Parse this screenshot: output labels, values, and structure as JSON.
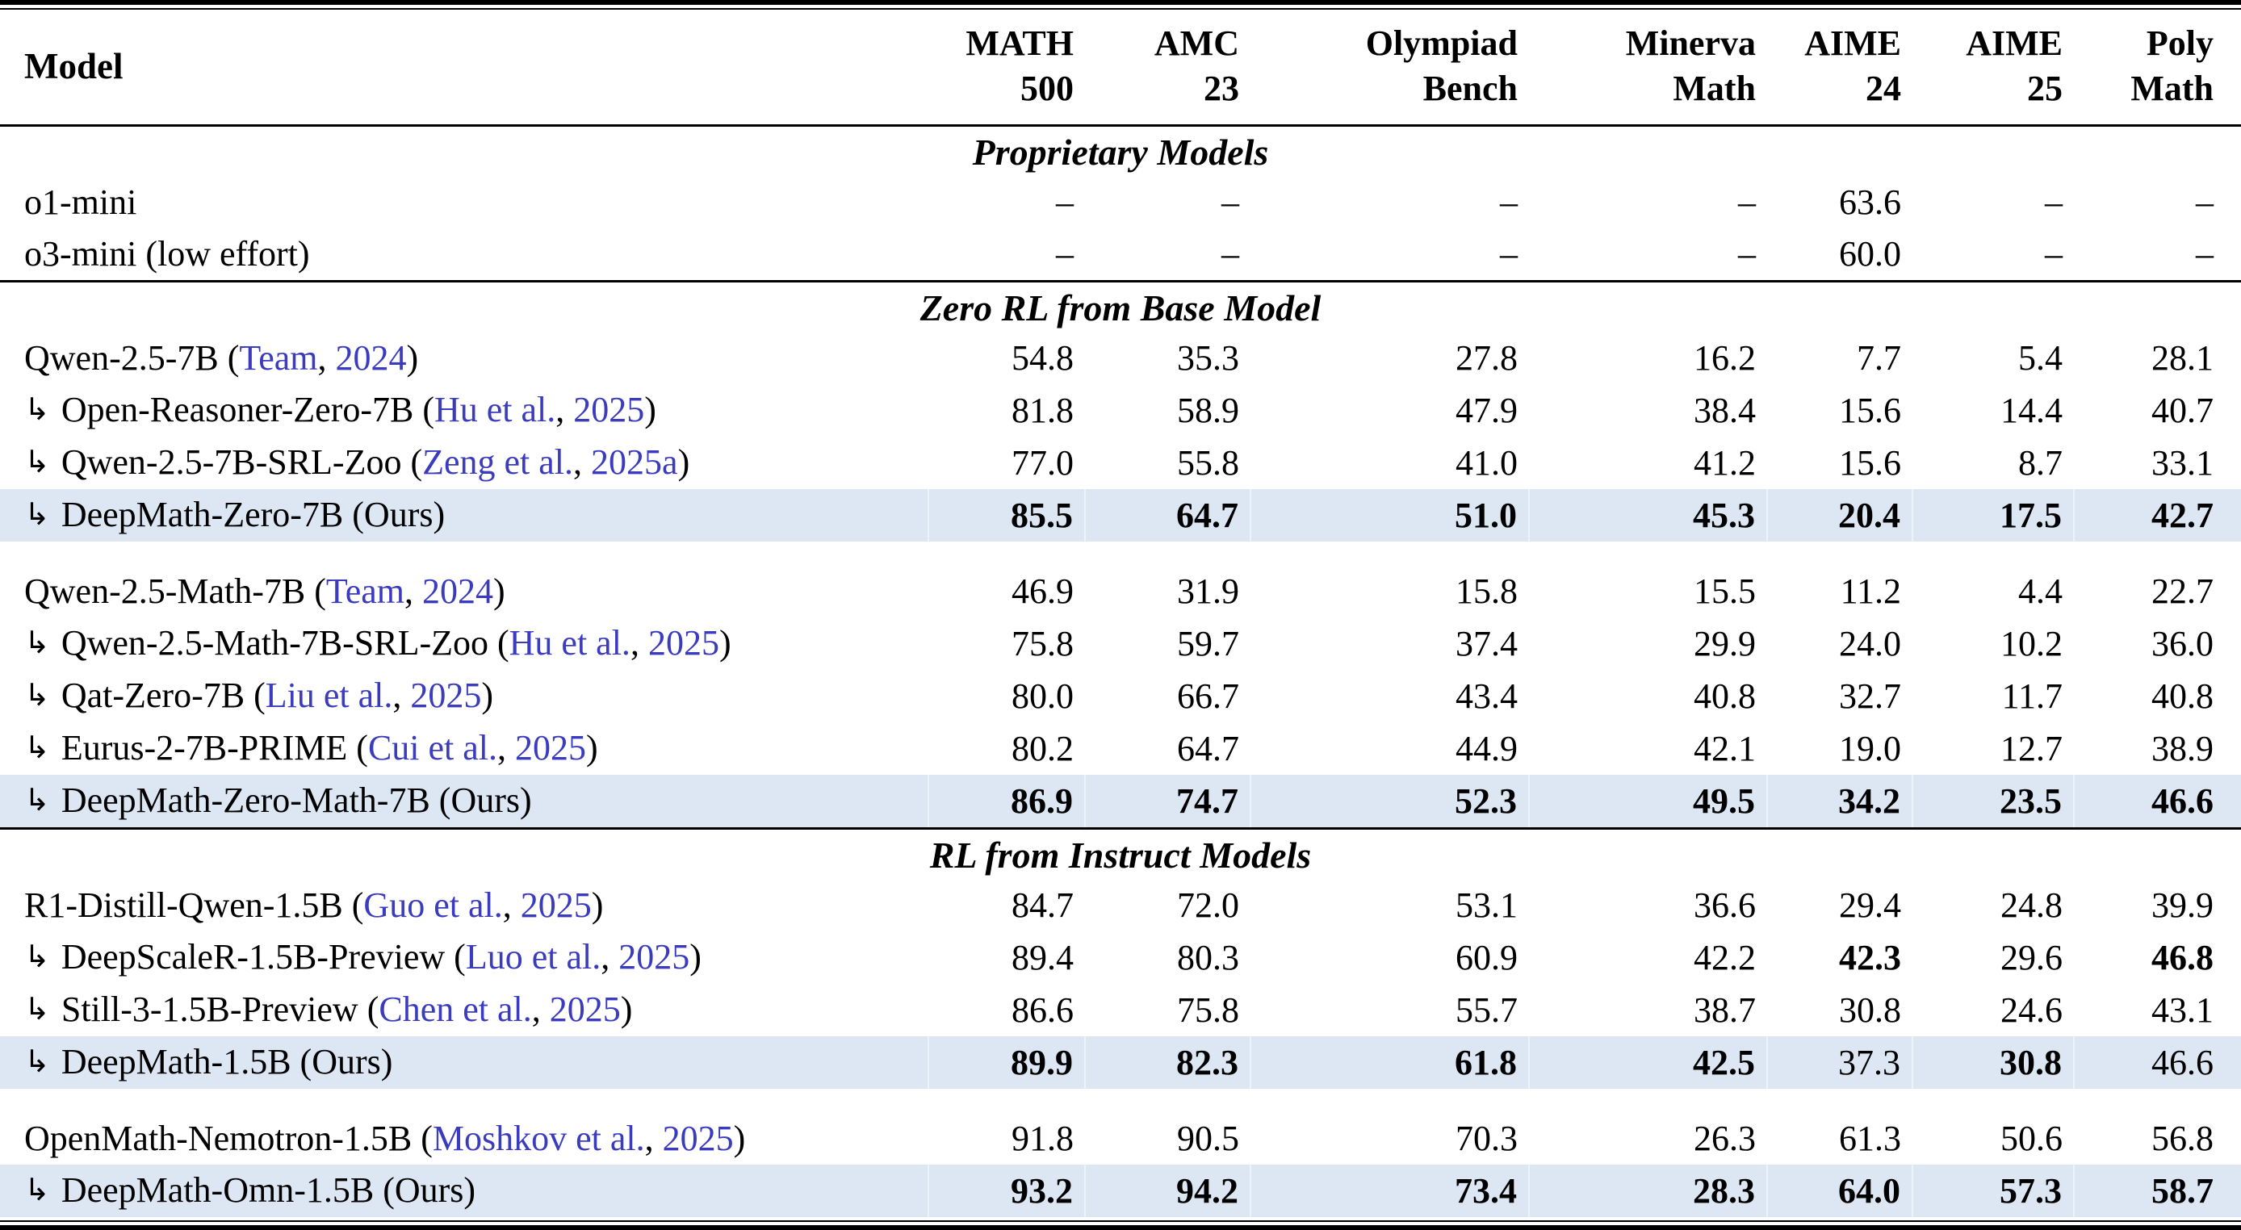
{
  "colors": {
    "citation_blue": "#3b3bc0",
    "highlight_row": "#dce7f3",
    "rule_black": "#000000",
    "background": "#ffffff"
  },
  "header": {
    "model_label": "Model",
    "columns": [
      {
        "line1": "MATH",
        "line2": "500"
      },
      {
        "line1": "AMC",
        "line2": "23"
      },
      {
        "line1": "Olympiad",
        "line2": "Bench"
      },
      {
        "line1": "Minerva",
        "line2": "Math"
      },
      {
        "line1": "AIME",
        "line2": "24"
      },
      {
        "line1": "AIME",
        "line2": "25"
      },
      {
        "line1": "Poly",
        "line2": "Math"
      }
    ]
  },
  "sections": [
    {
      "title": "Proprietary Models",
      "groups": [
        {
          "rows": [
            {
              "name": "o1-mini",
              "arrow": false,
              "highlight": false,
              "values": [
                "–",
                "–",
                "–",
                "–",
                "63.6",
                "–",
                "–"
              ],
              "bold": []
            },
            {
              "name": "o3-mini (low effort)",
              "arrow": false,
              "highlight": false,
              "values": [
                "–",
                "–",
                "–",
                "–",
                "60.0",
                "–",
                "–"
              ],
              "bold": []
            }
          ]
        }
      ]
    },
    {
      "title": "Zero RL from Base Model",
      "groups": [
        {
          "rows": [
            {
              "name": "Qwen-2.5-7B",
              "arrow": false,
              "highlight": false,
              "cite_author": "Team",
              "cite_year": "2024",
              "values": [
                "54.8",
                "35.3",
                "27.8",
                "16.2",
                "7.7",
                "5.4",
                "28.1"
              ],
              "bold": []
            },
            {
              "name": "Open-Reasoner-Zero-7B",
              "arrow": true,
              "highlight": false,
              "cite_author": "Hu et al.",
              "cite_year": "2025",
              "values": [
                "81.8",
                "58.9",
                "47.9",
                "38.4",
                "15.6",
                "14.4",
                "40.7"
              ],
              "bold": []
            },
            {
              "name": "Qwen-2.5-7B-SRL-Zoo",
              "arrow": true,
              "highlight": false,
              "cite_author": "Zeng et al.",
              "cite_year": "2025a",
              "values": [
                "77.0",
                "55.8",
                "41.0",
                "41.2",
                "15.6",
                "8.7",
                "33.1"
              ],
              "bold": []
            },
            {
              "name": "DeepMath-Zero-7B (Ours)",
              "arrow": true,
              "highlight": true,
              "values": [
                "85.5",
                "64.7",
                "51.0",
                "45.3",
                "20.4",
                "17.5",
                "42.7"
              ],
              "bold": [
                0,
                1,
                2,
                3,
                4,
                5,
                6
              ]
            }
          ]
        },
        {
          "rows": [
            {
              "name": "Qwen-2.5-Math-7B",
              "arrow": false,
              "highlight": false,
              "cite_author": "Team",
              "cite_year": "2024",
              "values": [
                "46.9",
                "31.9",
                "15.8",
                "15.5",
                "11.2",
                "4.4",
                "22.7"
              ],
              "bold": []
            },
            {
              "name": "Qwen-2.5-Math-7B-SRL-Zoo",
              "arrow": true,
              "highlight": false,
              "cite_author": "Hu et al.",
              "cite_year": "2025",
              "values": [
                "75.8",
                "59.7",
                "37.4",
                "29.9",
                "24.0",
                "10.2",
                "36.0"
              ],
              "bold": []
            },
            {
              "name": "Qat-Zero-7B",
              "arrow": true,
              "highlight": false,
              "cite_author": "Liu et al.",
              "cite_year": "2025",
              "values": [
                "80.0",
                "66.7",
                "43.4",
                "40.8",
                "32.7",
                "11.7",
                "40.8"
              ],
              "bold": []
            },
            {
              "name": "Eurus-2-7B-PRIME",
              "arrow": true,
              "highlight": false,
              "cite_author": "Cui et al.",
              "cite_year": "2025",
              "values": [
                "80.2",
                "64.7",
                "44.9",
                "42.1",
                "19.0",
                "12.7",
                "38.9"
              ],
              "bold": []
            },
            {
              "name": "DeepMath-Zero-Math-7B (Ours)",
              "arrow": true,
              "highlight": true,
              "values": [
                "86.9",
                "74.7",
                "52.3",
                "49.5",
                "34.2",
                "23.5",
                "46.6"
              ],
              "bold": [
                0,
                1,
                2,
                3,
                4,
                5,
                6
              ]
            }
          ]
        }
      ]
    },
    {
      "title": "RL from Instruct Models",
      "groups": [
        {
          "rows": [
            {
              "name": "R1-Distill-Qwen-1.5B",
              "arrow": false,
              "highlight": false,
              "cite_author": "Guo et al.",
              "cite_year": "2025",
              "values": [
                "84.7",
                "72.0",
                "53.1",
                "36.6",
                "29.4",
                "24.8",
                "39.9"
              ],
              "bold": []
            },
            {
              "name": "DeepScaleR-1.5B-Preview",
              "arrow": true,
              "highlight": false,
              "cite_author": "Luo et al.",
              "cite_year": "2025",
              "values": [
                "89.4",
                "80.3",
                "60.9",
                "42.2",
                "42.3",
                "29.6",
                "46.8"
              ],
              "bold": [
                4,
                6
              ]
            },
            {
              "name": "Still-3-1.5B-Preview",
              "arrow": true,
              "highlight": false,
              "cite_author": "Chen et al.",
              "cite_year": "2025",
              "values": [
                "86.6",
                "75.8",
                "55.7",
                "38.7",
                "30.8",
                "24.6",
                "43.1"
              ],
              "bold": []
            },
            {
              "name": "DeepMath-1.5B (Ours)",
              "arrow": true,
              "highlight": true,
              "values": [
                "89.9",
                "82.3",
                "61.8",
                "42.5",
                "37.3",
                "30.8",
                "46.6"
              ],
              "bold": [
                0,
                1,
                2,
                3,
                5
              ]
            }
          ]
        },
        {
          "rows": [
            {
              "name": "OpenMath-Nemotron-1.5B",
              "arrow": false,
              "highlight": false,
              "cite_author": "Moshkov et al.",
              "cite_year": "2025",
              "values": [
                "91.8",
                "90.5",
                "70.3",
                "26.3",
                "61.3",
                "50.6",
                "56.8"
              ],
              "bold": []
            },
            {
              "name": "DeepMath-Omn-1.5B (Ours)",
              "arrow": true,
              "highlight": true,
              "values": [
                "93.2",
                "94.2",
                "73.4",
                "28.3",
                "64.0",
                "57.3",
                "58.7"
              ],
              "bold": [
                0,
                1,
                2,
                3,
                4,
                5,
                6
              ]
            }
          ]
        }
      ]
    }
  ]
}
